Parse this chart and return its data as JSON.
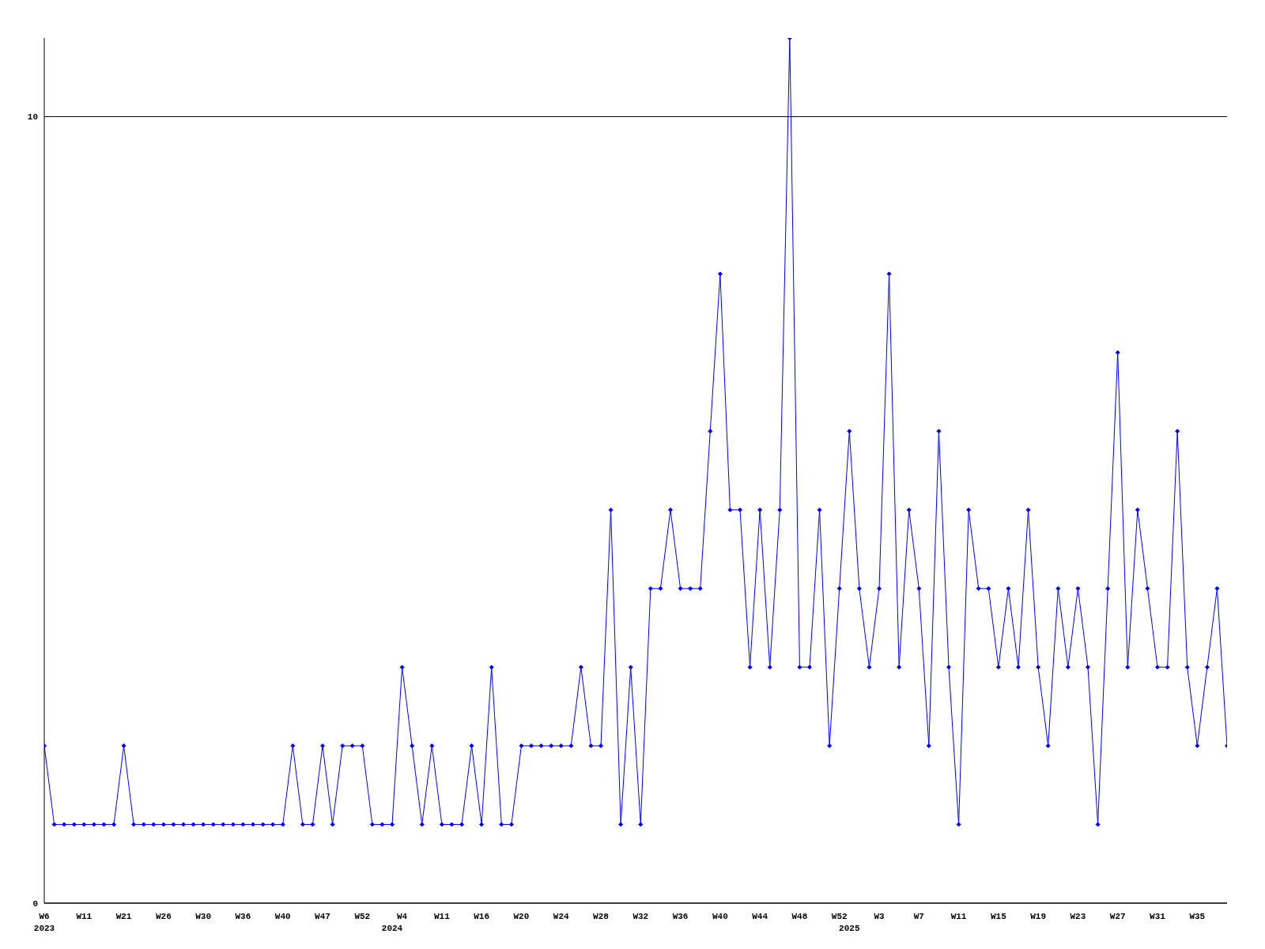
{
  "chart_data": {
    "type": "line",
    "categories": [
      "W6\n2023",
      null,
      null,
      null,
      "W11",
      null,
      null,
      null,
      "W21",
      null,
      null,
      null,
      "W26",
      null,
      null,
      null,
      "W30",
      null,
      null,
      null,
      "W36",
      null,
      null,
      null,
      "W40",
      null,
      null,
      null,
      "W47",
      null,
      null,
      null,
      "W52",
      null,
      null,
      "\n2024",
      "W4",
      null,
      null,
      null,
      "W11",
      null,
      null,
      null,
      "W16",
      null,
      null,
      null,
      "W20",
      null,
      null,
      null,
      "W24",
      null,
      null,
      null,
      "W28",
      null,
      null,
      null,
      "W32",
      null,
      null,
      null,
      "W36",
      null,
      null,
      null,
      "W40",
      null,
      null,
      null,
      "W44",
      null,
      null,
      null,
      "W48",
      null,
      null,
      null,
      "W52",
      "\n2025",
      null,
      null,
      "W3",
      null,
      null,
      null,
      "W7",
      null,
      null,
      null,
      "W11",
      null,
      null,
      null,
      "W15",
      null,
      null,
      null,
      "W19",
      null,
      null,
      null,
      "W23",
      null,
      null,
      null,
      "W27",
      null,
      null,
      null,
      "W31",
      null,
      null,
      null,
      "W35",
      null,
      null,
      null
    ],
    "series": [
      {
        "color": "#0000ff",
        "values": [
          2,
          1,
          1,
          1,
          1,
          1,
          1,
          1,
          2,
          1,
          1,
          1,
          1,
          1,
          1,
          1,
          1,
          1,
          1,
          1,
          1,
          1,
          1,
          1,
          1,
          2,
          1,
          1,
          2,
          1,
          2,
          2,
          2,
          1,
          1,
          1,
          3,
          2,
          1,
          2,
          1,
          1,
          1,
          2,
          1,
          3,
          1,
          1,
          2,
          2,
          2,
          2,
          2,
          2,
          3,
          2,
          2,
          5,
          1,
          3,
          1,
          4,
          4,
          5,
          4,
          4,
          4,
          6,
          8,
          5,
          5,
          3,
          5,
          3,
          5,
          11,
          3,
          3,
          5,
          2,
          4,
          6,
          4,
          3,
          4,
          8,
          3,
          5,
          4,
          2,
          6,
          3,
          1,
          5,
          4,
          4,
          3,
          4,
          3,
          5,
          3,
          2,
          4,
          3,
          4,
          3,
          1,
          4,
          7,
          3,
          5,
          4,
          3,
          3,
          6,
          3,
          2,
          3,
          4,
          2
        ]
      }
    ],
    "ylim": [
      0,
      11
    ],
    "yticks": [
      0,
      10
    ],
    "grid": "y",
    "marker": "diamond",
    "line_style": "solid"
  }
}
